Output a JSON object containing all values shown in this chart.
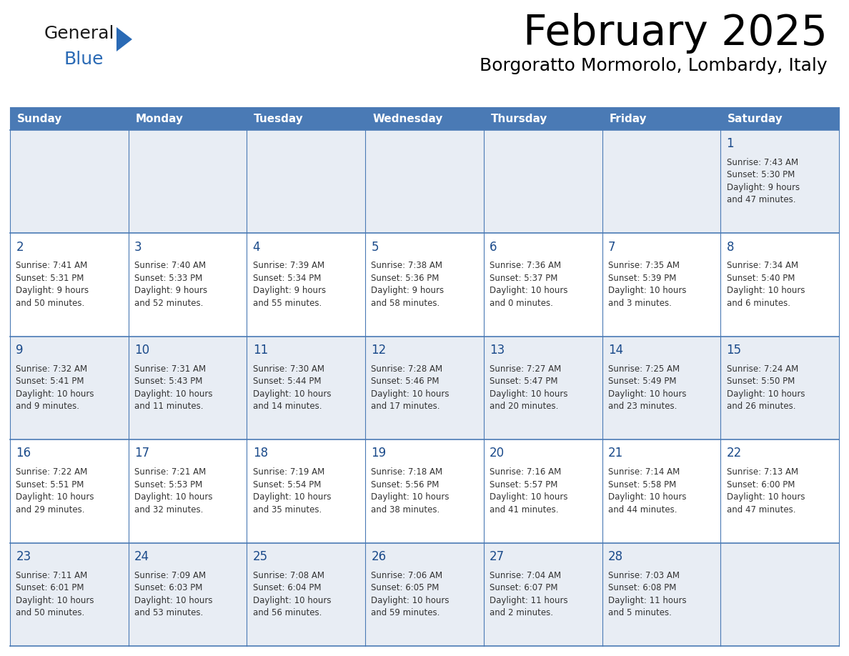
{
  "title": "February 2025",
  "subtitle": "Borgoratto Mormorolo, Lombardy, Italy",
  "header_color": "#4a7ab5",
  "header_text_color": "#ffffff",
  "cell_bg_odd": "#e8edf4",
  "cell_bg_even": "#ffffff",
  "day_headers": [
    "Sunday",
    "Monday",
    "Tuesday",
    "Wednesday",
    "Thursday",
    "Friday",
    "Saturday"
  ],
  "title_color": "#000000",
  "subtitle_color": "#000000",
  "day_number_color": "#1a4a8a",
  "day_text_color": "#333333",
  "grid_color": "#4a7ab5",
  "logo_general_color": "#1a1a1a",
  "logo_blue_color": "#2a6ab5",
  "logo_triangle_color": "#2a6ab5",
  "weeks": [
    [
      {
        "day": "",
        "info": ""
      },
      {
        "day": "",
        "info": ""
      },
      {
        "day": "",
        "info": ""
      },
      {
        "day": "",
        "info": ""
      },
      {
        "day": "",
        "info": ""
      },
      {
        "day": "",
        "info": ""
      },
      {
        "day": "1",
        "info": "Sunrise: 7:43 AM\nSunset: 5:30 PM\nDaylight: 9 hours\nand 47 minutes."
      }
    ],
    [
      {
        "day": "2",
        "info": "Sunrise: 7:41 AM\nSunset: 5:31 PM\nDaylight: 9 hours\nand 50 minutes."
      },
      {
        "day": "3",
        "info": "Sunrise: 7:40 AM\nSunset: 5:33 PM\nDaylight: 9 hours\nand 52 minutes."
      },
      {
        "day": "4",
        "info": "Sunrise: 7:39 AM\nSunset: 5:34 PM\nDaylight: 9 hours\nand 55 minutes."
      },
      {
        "day": "5",
        "info": "Sunrise: 7:38 AM\nSunset: 5:36 PM\nDaylight: 9 hours\nand 58 minutes."
      },
      {
        "day": "6",
        "info": "Sunrise: 7:36 AM\nSunset: 5:37 PM\nDaylight: 10 hours\nand 0 minutes."
      },
      {
        "day": "7",
        "info": "Sunrise: 7:35 AM\nSunset: 5:39 PM\nDaylight: 10 hours\nand 3 minutes."
      },
      {
        "day": "8",
        "info": "Sunrise: 7:34 AM\nSunset: 5:40 PM\nDaylight: 10 hours\nand 6 minutes."
      }
    ],
    [
      {
        "day": "9",
        "info": "Sunrise: 7:32 AM\nSunset: 5:41 PM\nDaylight: 10 hours\nand 9 minutes."
      },
      {
        "day": "10",
        "info": "Sunrise: 7:31 AM\nSunset: 5:43 PM\nDaylight: 10 hours\nand 11 minutes."
      },
      {
        "day": "11",
        "info": "Sunrise: 7:30 AM\nSunset: 5:44 PM\nDaylight: 10 hours\nand 14 minutes."
      },
      {
        "day": "12",
        "info": "Sunrise: 7:28 AM\nSunset: 5:46 PM\nDaylight: 10 hours\nand 17 minutes."
      },
      {
        "day": "13",
        "info": "Sunrise: 7:27 AM\nSunset: 5:47 PM\nDaylight: 10 hours\nand 20 minutes."
      },
      {
        "day": "14",
        "info": "Sunrise: 7:25 AM\nSunset: 5:49 PM\nDaylight: 10 hours\nand 23 minutes."
      },
      {
        "day": "15",
        "info": "Sunrise: 7:24 AM\nSunset: 5:50 PM\nDaylight: 10 hours\nand 26 minutes."
      }
    ],
    [
      {
        "day": "16",
        "info": "Sunrise: 7:22 AM\nSunset: 5:51 PM\nDaylight: 10 hours\nand 29 minutes."
      },
      {
        "day": "17",
        "info": "Sunrise: 7:21 AM\nSunset: 5:53 PM\nDaylight: 10 hours\nand 32 minutes."
      },
      {
        "day": "18",
        "info": "Sunrise: 7:19 AM\nSunset: 5:54 PM\nDaylight: 10 hours\nand 35 minutes."
      },
      {
        "day": "19",
        "info": "Sunrise: 7:18 AM\nSunset: 5:56 PM\nDaylight: 10 hours\nand 38 minutes."
      },
      {
        "day": "20",
        "info": "Sunrise: 7:16 AM\nSunset: 5:57 PM\nDaylight: 10 hours\nand 41 minutes."
      },
      {
        "day": "21",
        "info": "Sunrise: 7:14 AM\nSunset: 5:58 PM\nDaylight: 10 hours\nand 44 minutes."
      },
      {
        "day": "22",
        "info": "Sunrise: 7:13 AM\nSunset: 6:00 PM\nDaylight: 10 hours\nand 47 minutes."
      }
    ],
    [
      {
        "day": "23",
        "info": "Sunrise: 7:11 AM\nSunset: 6:01 PM\nDaylight: 10 hours\nand 50 minutes."
      },
      {
        "day": "24",
        "info": "Sunrise: 7:09 AM\nSunset: 6:03 PM\nDaylight: 10 hours\nand 53 minutes."
      },
      {
        "day": "25",
        "info": "Sunrise: 7:08 AM\nSunset: 6:04 PM\nDaylight: 10 hours\nand 56 minutes."
      },
      {
        "day": "26",
        "info": "Sunrise: 7:06 AM\nSunset: 6:05 PM\nDaylight: 10 hours\nand 59 minutes."
      },
      {
        "day": "27",
        "info": "Sunrise: 7:04 AM\nSunset: 6:07 PM\nDaylight: 11 hours\nand 2 minutes."
      },
      {
        "day": "28",
        "info": "Sunrise: 7:03 AM\nSunset: 6:08 PM\nDaylight: 11 hours\nand 5 minutes."
      },
      {
        "day": "",
        "info": ""
      }
    ]
  ]
}
